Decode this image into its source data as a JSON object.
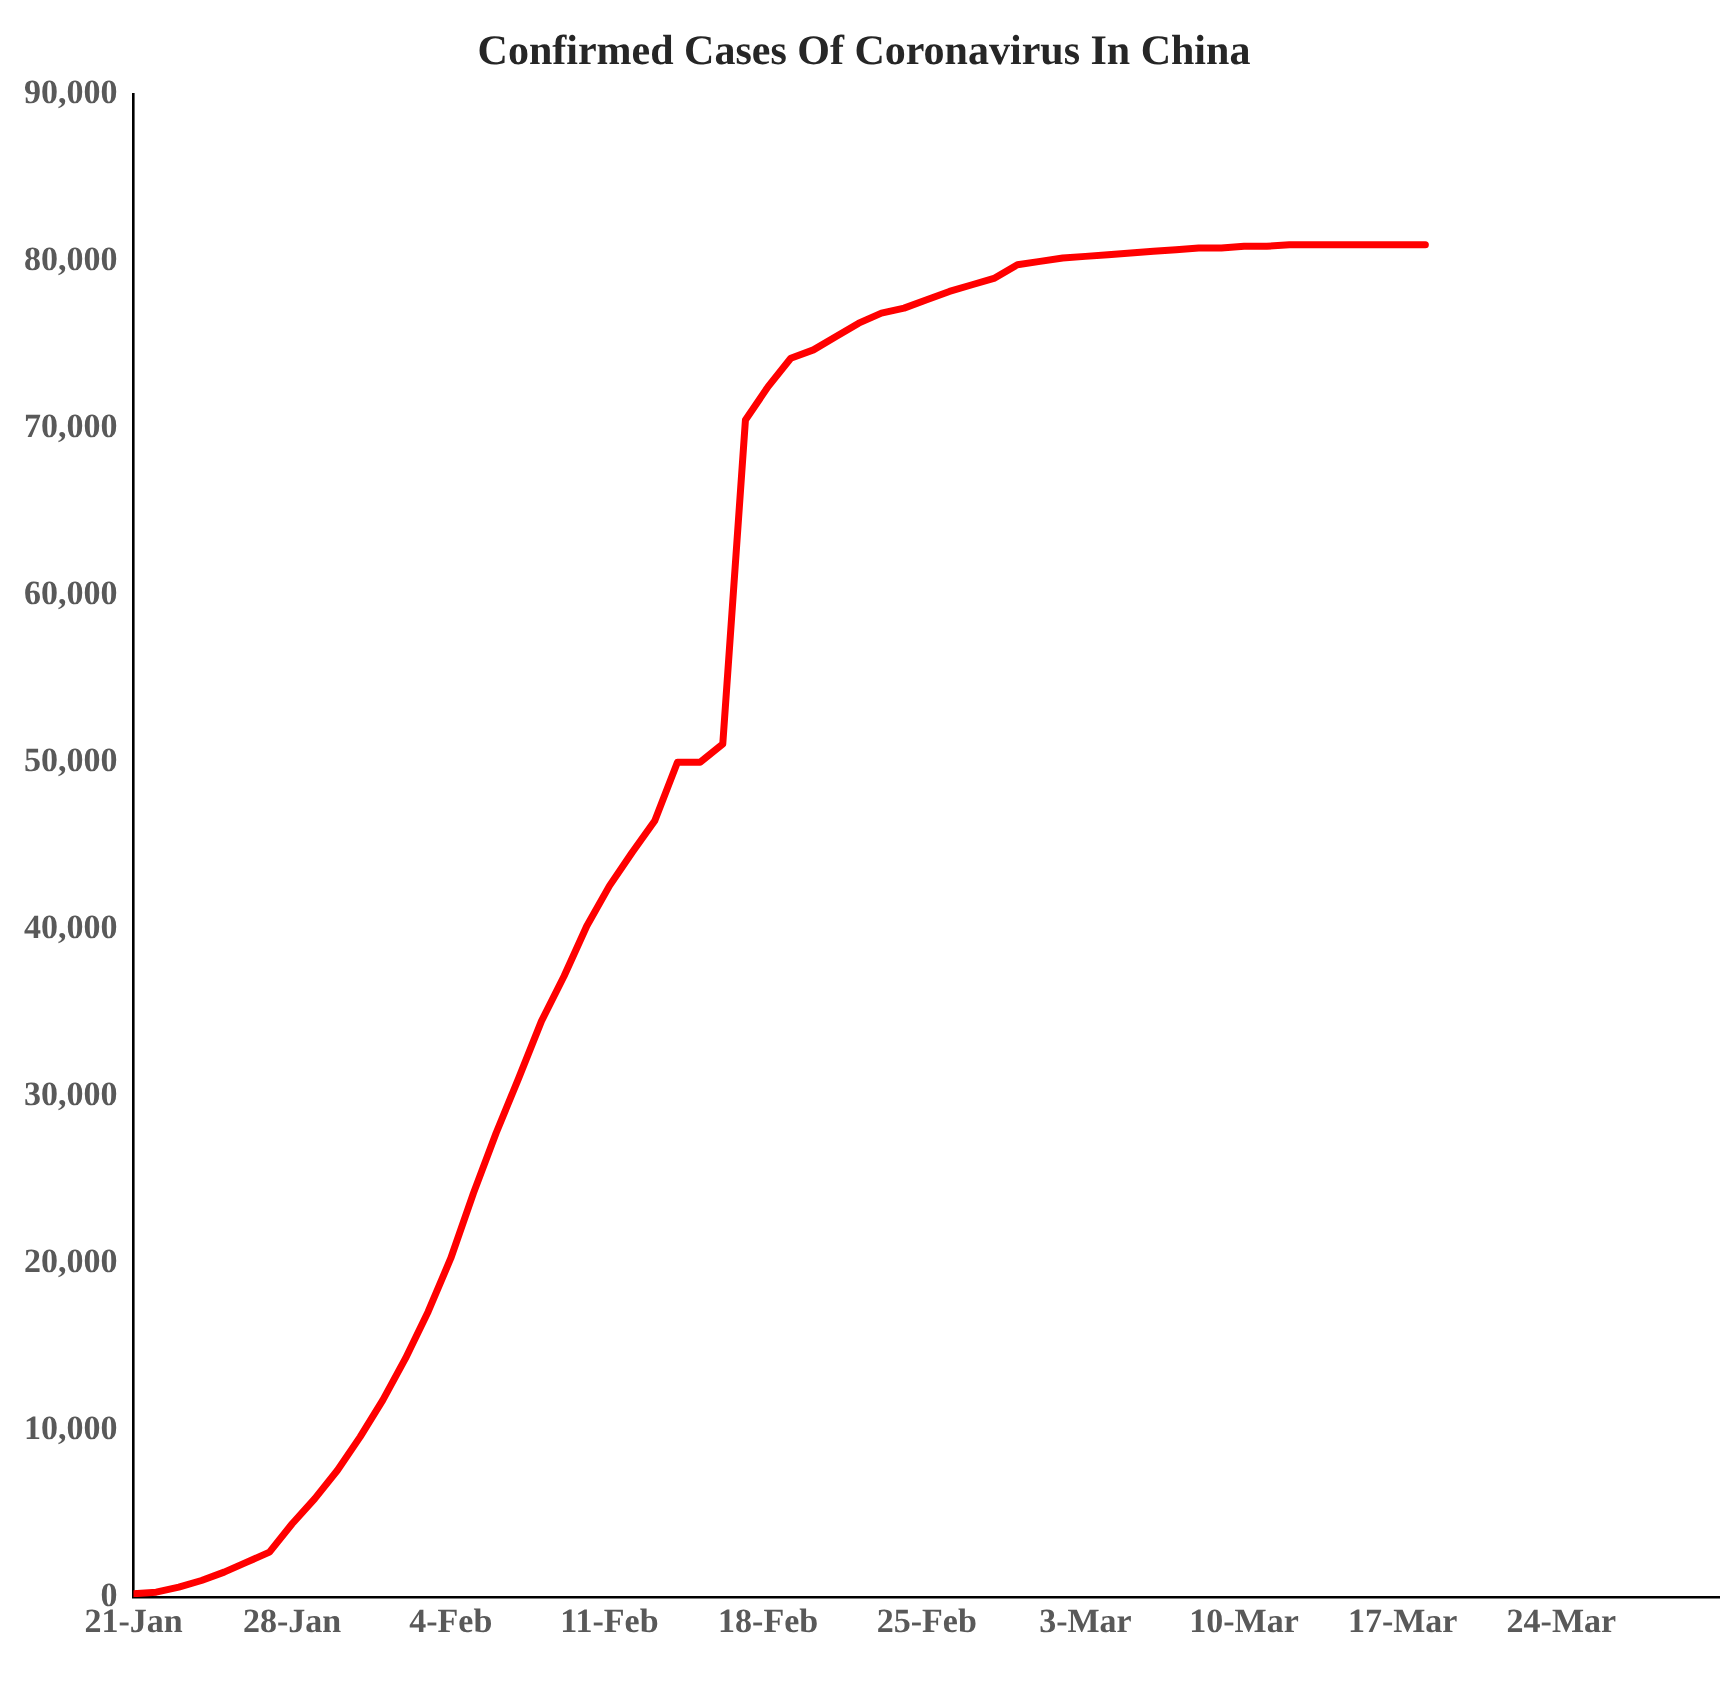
{
  "chart_data": {
    "type": "line",
    "title": "Confirmed Cases Of Coronavirus In China",
    "x": [
      "--01-21",
      "--01-22",
      "--01-23",
      "--01-24",
      "--01-25",
      "--01-26",
      "--01-27",
      "--01-28",
      "--01-29",
      "--01-30",
      "--01-31",
      "--02-01",
      "--02-02",
      "--02-03",
      "--02-04",
      "--02-05",
      "--02-06",
      "--02-07",
      "--02-08",
      "--02-09",
      "--02-10",
      "--02-11",
      "--02-12",
      "--02-13",
      "--02-14",
      "--02-15",
      "--02-16",
      "--02-17",
      "--02-18",
      "--02-19",
      "--02-20",
      "--02-21",
      "--02-22",
      "--02-23",
      "--02-24",
      "--02-25",
      "--02-26",
      "--02-27",
      "--02-28",
      "--02-29",
      "--03-01",
      "--03-02",
      "--03-03",
      "--03-04",
      "--03-05",
      "--03-06",
      "--03-07",
      "--03-08",
      "--03-09",
      "--03-10",
      "--03-11",
      "--03-12",
      "--03-13",
      "--03-14",
      "--03-15",
      "--03-16",
      "--03-17",
      "--03-18"
    ],
    "series": [
      {
        "color": "#ff0000",
        "values": [
          200,
          300,
          600,
          1000,
          1500,
          2100,
          2700,
          4400,
          5900,
          7600,
          9600,
          11800,
          14300,
          17100,
          20300,
          24200,
          27800,
          31100,
          34500,
          37200,
          40200,
          42600,
          44600,
          46500,
          50000,
          50000,
          51100,
          70500,
          72500,
          74200,
          74700,
          75500,
          76300,
          76900,
          77200,
          77700,
          78200,
          78600,
          79000,
          79800,
          80000,
          80200,
          80300,
          80400,
          80500,
          80600,
          80700,
          80800,
          80800,
          80900,
          80900,
          81000,
          81000,
          81000,
          81000,
          81000,
          81000,
          81000
        ]
      }
    ],
    "xlim": [
      "--01-21",
      "--03-31"
    ],
    "xticks": [
      {
        "value": "--01-21",
        "label": "21-Jan"
      },
      {
        "value": "--01-28",
        "label": "28-Jan"
      },
      {
        "value": "--02-04",
        "label": "4-Feb"
      },
      {
        "value": "--02-11",
        "label": "11-Feb"
      },
      {
        "value": "--02-18",
        "label": "18-Feb"
      },
      {
        "value": "--02-25",
        "label": "25-Feb"
      },
      {
        "value": "--03-03",
        "label": "3-Mar"
      },
      {
        "value": "--03-10",
        "label": "10-Mar"
      },
      {
        "value": "--03-17",
        "label": "17-Mar"
      },
      {
        "value": "--03-24",
        "label": "24-Mar"
      }
    ],
    "ylim": [
      0,
      90000
    ],
    "yticks": [
      0,
      {
        "value": 10000,
        "label": "10,000"
      },
      {
        "value": 20000,
        "label": "20,000"
      },
      {
        "value": 30000,
        "label": "30,000"
      },
      {
        "value": 40000,
        "label": "40,000"
      },
      {
        "value": 50000,
        "label": "50,000"
      },
      {
        "value": 60000,
        "label": "60,000"
      },
      {
        "value": 70000,
        "label": "70,000"
      },
      {
        "value": 80000,
        "label": "80,000"
      },
      {
        "value": 90000,
        "label": "90,000"
      }
    ],
    "grid": false,
    "legend": false,
    "marker": "none",
    "line_style": "solid"
  }
}
